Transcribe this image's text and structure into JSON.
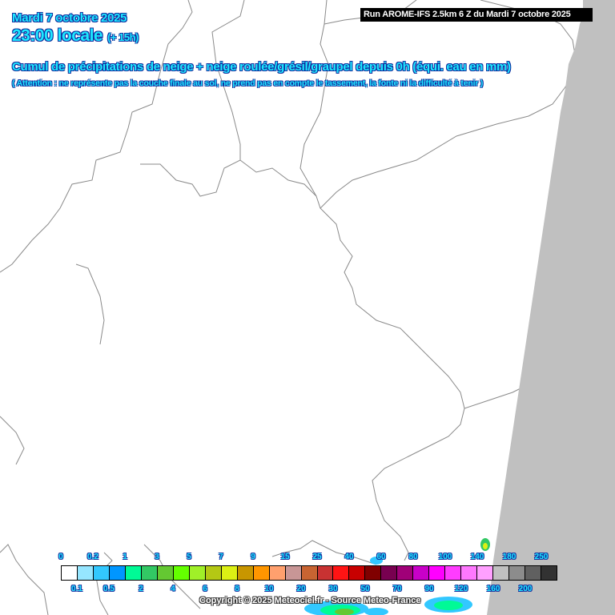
{
  "header": {
    "date": "Mardi 7 octobre 2025",
    "time": "23:00 locale",
    "lead": "(+ 15h)",
    "title": "Cumul de précipitations de neige + neige roulée/grésil/graupel depuis 0h (équi. eau en mm)",
    "note": "( Attention : ne représente pas la couche finale au sol, ne prend pas en compte le tassement, la fonte ni la difficulté à tenir )",
    "run": "Run AROME-IFS 2.5km 6 Z du Mardi 7 octobre 2025"
  },
  "legend": {
    "values": [
      "0",
      "0.1",
      "0.2",
      "0.5",
      "1",
      "2",
      "3",
      "4",
      "5",
      "6",
      "7",
      "8",
      "9",
      "10",
      "15",
      "20",
      "25",
      "30",
      "40",
      "50",
      "60",
      "70",
      "80",
      "90",
      "100",
      "120",
      "140",
      "160",
      "180",
      "200",
      "250"
    ],
    "colors": [
      "#ffffff",
      "#96e6ff",
      "#32c8ff",
      "#0096ff",
      "#00fa96",
      "#32c864",
      "#64c832",
      "#64ff00",
      "#a0f028",
      "#b4c814",
      "#dcf014",
      "#c89600",
      "#ff9600",
      "#ffa06e",
      "#c89696",
      "#c86432",
      "#c83232",
      "#ff1414",
      "#c80000",
      "#800000",
      "#780050",
      "#a00078",
      "#c800c8",
      "#ff00ff",
      "#ff3cff",
      "#ff78ff",
      "#ffa0ff",
      "#c0c0c0",
      "#8c8c8c",
      "#606060",
      "#323232"
    ]
  },
  "copyright": "Copyright © 2025 Meteociel.fr - Source Meteo-France",
  "colors": {
    "text": "#1ee8ff",
    "outside_domain": "#c0c0c0",
    "borders": "#808080"
  }
}
